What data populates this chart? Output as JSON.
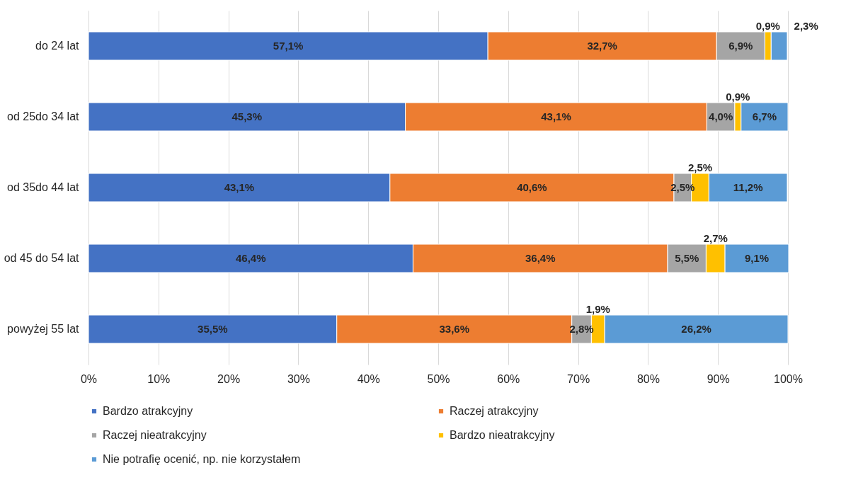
{
  "chart_data": {
    "type": "bar",
    "orientation": "horizontal",
    "stacked": true,
    "categories": [
      "do 24 lat",
      "od 25do 34 lat",
      "od 35do 44 lat",
      "od 45 do 54 lat",
      "powyżej 55 lat"
    ],
    "series": [
      {
        "name": "Bardzo atrakcyjny",
        "color": "#4472c4",
        "values": [
          57.1,
          45.3,
          43.1,
          46.4,
          35.5
        ],
        "value_labels": [
          "57,1%",
          "45,3%",
          "43,1%",
          "46,4%",
          "35,5%"
        ]
      },
      {
        "name": "Raczej atrakcyjny",
        "color": "#ed7d31",
        "values": [
          32.7,
          43.1,
          40.6,
          36.4,
          33.6
        ],
        "value_labels": [
          "32,7%",
          "43,1%",
          "40,6%",
          "36,4%",
          "33,6%"
        ]
      },
      {
        "name": "Raczej nieatrakcyjny",
        "color": "#a5a5a5",
        "values": [
          6.9,
          4.0,
          2.5,
          5.5,
          2.8
        ],
        "value_labels": [
          "6,9%",
          "4,0%",
          "2,5%",
          "5,5%",
          "2,8%"
        ]
      },
      {
        "name": "Bardzo nieatrakcyjny",
        "color": "#ffc000",
        "values": [
          0.9,
          0.9,
          2.5,
          2.7,
          1.9
        ],
        "value_labels": [
          "0,9%",
          "0,9%",
          "2,5%",
          "2,7%",
          "1,9%"
        ]
      },
      {
        "name": "Nie potrafię ocenić, np. nie korzystałem",
        "color": "#5b9bd5",
        "values": [
          2.3,
          6.7,
          11.2,
          9.1,
          26.2
        ],
        "value_labels": [
          "2,3%",
          "6,7%",
          "11,2%",
          "9,1%",
          "26,2%"
        ]
      }
    ],
    "xlim": [
      0,
      100
    ],
    "xticks": [
      {
        "value": 0,
        "label": "0%"
      },
      {
        "value": 10,
        "label": "10%"
      },
      {
        "value": 20,
        "label": "20%"
      },
      {
        "value": 30,
        "label": "30%"
      },
      {
        "value": 40,
        "label": "40%"
      },
      {
        "value": 50,
        "label": "50%"
      },
      {
        "value": 60,
        "label": "60%"
      },
      {
        "value": 70,
        "label": "70%"
      },
      {
        "value": 80,
        "label": "80%"
      },
      {
        "value": 90,
        "label": "90%"
      },
      {
        "value": 100,
        "label": "100%"
      }
    ],
    "grid": "x",
    "legend": "bottom"
  }
}
